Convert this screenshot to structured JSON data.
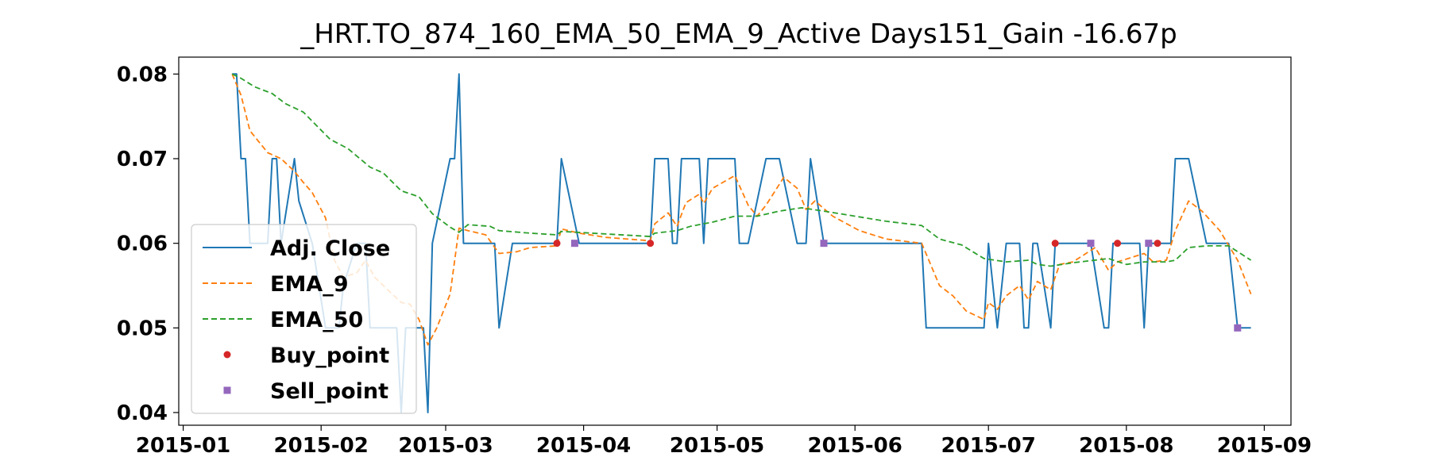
{
  "chart_data": {
    "type": "line",
    "title": "_HRT.TO_874_160_EMA_50_EMA_9_Active Days151_Gain -16.67p",
    "xlabel": "",
    "ylabel": "",
    "xlim": [
      "2014-12-31",
      "2015-09-07"
    ],
    "ylim": [
      0.0385,
      0.082
    ],
    "x_ticks": [
      "2015-01",
      "2015-02",
      "2015-03",
      "2015-04",
      "2015-05",
      "2015-06",
      "2015-07",
      "2015-08",
      "2015-09"
    ],
    "y_ticks": [
      "0.04",
      "0.05",
      "0.06",
      "0.07",
      "0.08"
    ],
    "grid": false,
    "legend_position": "center-left",
    "series": [
      {
        "name": "Adj. Close",
        "color": "#1f77b4",
        "style": "solid",
        "points": [
          [
            "2015-01-12",
            0.08
          ],
          [
            "2015-01-13",
            0.08
          ],
          [
            "2015-01-14",
            0.07
          ],
          [
            "2015-01-15",
            0.07
          ],
          [
            "2015-01-16",
            0.06
          ],
          [
            "2015-01-20",
            0.06
          ],
          [
            "2015-01-21",
            0.07
          ],
          [
            "2015-01-22",
            0.07
          ],
          [
            "2015-01-23",
            0.06
          ],
          [
            "2015-01-26",
            0.07
          ],
          [
            "2015-01-27",
            0.065
          ],
          [
            "2015-01-30",
            0.06
          ],
          [
            "2015-02-02",
            0.05
          ],
          [
            "2015-02-05",
            0.05
          ],
          [
            "2015-02-06",
            0.055
          ],
          [
            "2015-02-09",
            0.06
          ],
          [
            "2015-02-11",
            0.06
          ],
          [
            "2015-02-12",
            0.05
          ],
          [
            "2015-02-18",
            0.05
          ],
          [
            "2015-02-19",
            0.04
          ],
          [
            "2015-02-20",
            0.05
          ],
          [
            "2015-02-24",
            0.05
          ],
          [
            "2015-02-25",
            0.04
          ],
          [
            "2015-02-26",
            0.06
          ],
          [
            "2015-03-02",
            0.07
          ],
          [
            "2015-03-03",
            0.07
          ],
          [
            "2015-03-04",
            0.08
          ],
          [
            "2015-03-05",
            0.06
          ],
          [
            "2015-03-11",
            0.06
          ],
          [
            "2015-03-12",
            0.06
          ],
          [
            "2015-03-13",
            0.05
          ],
          [
            "2015-03-16",
            0.06
          ],
          [
            "2015-03-26",
            0.06
          ],
          [
            "2015-03-27",
            0.07
          ],
          [
            "2015-03-31",
            0.06
          ],
          [
            "2015-04-06",
            0.06
          ],
          [
            "2015-04-16",
            0.06
          ],
          [
            "2015-04-17",
            0.07
          ],
          [
            "2015-04-20",
            0.07
          ],
          [
            "2015-04-21",
            0.06
          ],
          [
            "2015-04-22",
            0.06
          ],
          [
            "2015-04-23",
            0.07
          ],
          [
            "2015-04-27",
            0.07
          ],
          [
            "2015-04-28",
            0.06
          ],
          [
            "2015-04-29",
            0.07
          ],
          [
            "2015-05-05",
            0.07
          ],
          [
            "2015-05-06",
            0.06
          ],
          [
            "2015-05-08",
            0.06
          ],
          [
            "2015-05-12",
            0.07
          ],
          [
            "2015-05-15",
            0.07
          ],
          [
            "2015-05-19",
            0.06
          ],
          [
            "2015-05-21",
            0.06
          ],
          [
            "2015-05-22",
            0.07
          ],
          [
            "2015-05-25",
            0.06
          ],
          [
            "2015-06-16",
            0.06
          ],
          [
            "2015-06-17",
            0.05
          ],
          [
            "2015-06-30",
            0.05
          ],
          [
            "2015-07-01",
            0.06
          ],
          [
            "2015-07-03",
            0.05
          ],
          [
            "2015-07-05",
            0.06
          ],
          [
            "2015-07-08",
            0.06
          ],
          [
            "2015-07-09",
            0.05
          ],
          [
            "2015-07-10",
            0.05
          ],
          [
            "2015-07-11",
            0.06
          ],
          [
            "2015-07-12",
            0.06
          ],
          [
            "2015-07-15",
            0.05
          ],
          [
            "2015-07-16",
            0.06
          ],
          [
            "2015-07-24",
            0.06
          ],
          [
            "2015-07-27",
            0.05
          ],
          [
            "2015-07-28",
            0.05
          ],
          [
            "2015-07-29",
            0.06
          ],
          [
            "2015-08-04",
            0.06
          ],
          [
            "2015-08-05",
            0.05
          ],
          [
            "2015-08-06",
            0.06
          ],
          [
            "2015-08-11",
            0.06
          ],
          [
            "2015-08-12",
            0.07
          ],
          [
            "2015-08-15",
            0.07
          ],
          [
            "2015-08-19",
            0.06
          ],
          [
            "2015-08-24",
            0.06
          ],
          [
            "2015-08-26",
            0.05
          ],
          [
            "2015-08-29",
            0.05
          ]
        ]
      },
      {
        "name": "EMA_9",
        "color": "#ff7f0e",
        "style": "dashed",
        "points": [
          [
            "2015-01-12",
            0.08
          ],
          [
            "2015-01-14",
            0.0775
          ],
          [
            "2015-01-16",
            0.0733
          ],
          [
            "2015-01-20",
            0.0707
          ],
          [
            "2015-01-23",
            0.07
          ],
          [
            "2015-01-26",
            0.0685
          ],
          [
            "2015-01-28",
            0.0672
          ],
          [
            "2015-01-30",
            0.066
          ],
          [
            "2015-02-02",
            0.063
          ],
          [
            "2015-02-04",
            0.058
          ],
          [
            "2015-02-06",
            0.056
          ],
          [
            "2015-02-09",
            0.0565
          ],
          [
            "2015-02-11",
            0.058
          ],
          [
            "2015-02-13",
            0.056
          ],
          [
            "2015-02-17",
            0.054
          ],
          [
            "2015-02-19",
            0.053
          ],
          [
            "2015-02-21",
            0.0528
          ],
          [
            "2015-02-23",
            0.051
          ],
          [
            "2015-02-25",
            0.048
          ],
          [
            "2015-02-27",
            0.05
          ],
          [
            "2015-03-02",
            0.054
          ],
          [
            "2015-03-04",
            0.0618
          ],
          [
            "2015-03-06",
            0.0615
          ],
          [
            "2015-03-10",
            0.061
          ],
          [
            "2015-03-13",
            0.0588
          ],
          [
            "2015-03-17",
            0.059
          ],
          [
            "2015-03-20",
            0.0595
          ],
          [
            "2015-03-26",
            0.0597
          ],
          [
            "2015-03-27",
            0.0617
          ],
          [
            "2015-03-31",
            0.0612
          ],
          [
            "2015-04-06",
            0.0607
          ],
          [
            "2015-04-16",
            0.0603
          ],
          [
            "2015-04-17",
            0.0623
          ],
          [
            "2015-04-20",
            0.0636
          ],
          [
            "2015-04-22",
            0.062
          ],
          [
            "2015-04-24",
            0.0648
          ],
          [
            "2015-04-27",
            0.0658
          ],
          [
            "2015-04-28",
            0.0647
          ],
          [
            "2015-04-30",
            0.0665
          ],
          [
            "2015-05-05",
            0.068
          ],
          [
            "2015-05-08",
            0.0645
          ],
          [
            "2015-05-10",
            0.0632
          ],
          [
            "2015-05-12",
            0.0645
          ],
          [
            "2015-05-16",
            0.0678
          ],
          [
            "2015-05-19",
            0.0665
          ],
          [
            "2015-05-21",
            0.064
          ],
          [
            "2015-05-23",
            0.065
          ],
          [
            "2015-05-27",
            0.0632
          ],
          [
            "2015-06-02",
            0.0615
          ],
          [
            "2015-06-08",
            0.0605
          ],
          [
            "2015-06-16",
            0.06
          ],
          [
            "2015-06-20",
            0.055
          ],
          [
            "2015-06-23",
            0.0538
          ],
          [
            "2015-06-26",
            0.052
          ],
          [
            "2015-06-30",
            0.051
          ],
          [
            "2015-07-01",
            0.053
          ],
          [
            "2015-07-03",
            0.0522
          ],
          [
            "2015-07-05",
            0.0538
          ],
          [
            "2015-07-08",
            0.055
          ],
          [
            "2015-07-10",
            0.0533
          ],
          [
            "2015-07-12",
            0.0555
          ],
          [
            "2015-07-15",
            0.0545
          ],
          [
            "2015-07-17",
            0.0575
          ],
          [
            "2015-07-20",
            0.0578
          ],
          [
            "2015-07-25",
            0.0595
          ],
          [
            "2015-07-28",
            0.0568
          ],
          [
            "2015-07-30",
            0.0578
          ],
          [
            "2015-08-05",
            0.0588
          ],
          [
            "2015-08-07",
            0.0578
          ],
          [
            "2015-08-10",
            0.058
          ],
          [
            "2015-08-12",
            0.0615
          ],
          [
            "2015-08-15",
            0.065
          ],
          [
            "2015-08-18",
            0.0638
          ],
          [
            "2015-08-22",
            0.0615
          ],
          [
            "2015-08-26",
            0.058
          ],
          [
            "2015-08-29",
            0.054
          ]
        ]
      },
      {
        "name": "EMA_50",
        "color": "#2ca02c",
        "style": "dashed",
        "points": [
          [
            "2015-01-12",
            0.08
          ],
          [
            "2015-01-14",
            0.0795
          ],
          [
            "2015-01-17",
            0.0785
          ],
          [
            "2015-01-21",
            0.0777
          ],
          [
            "2015-01-24",
            0.0765
          ],
          [
            "2015-01-28",
            0.0755
          ],
          [
            "2015-02-03",
            0.0723
          ],
          [
            "2015-02-07",
            0.0712
          ],
          [
            "2015-02-12",
            0.069
          ],
          [
            "2015-02-15",
            0.0683
          ],
          [
            "2015-02-19",
            0.0662
          ],
          [
            "2015-02-23",
            0.0655
          ],
          [
            "2015-02-26",
            0.0635
          ],
          [
            "2015-02-28",
            0.0627
          ],
          [
            "2015-03-02",
            0.0619
          ],
          [
            "2015-03-04",
            0.0613
          ],
          [
            "2015-03-06",
            0.0622
          ],
          [
            "2015-03-11",
            0.062
          ],
          [
            "2015-03-13",
            0.0615
          ],
          [
            "2015-03-20",
            0.0612
          ],
          [
            "2015-03-26",
            0.061
          ],
          [
            "2015-03-27",
            0.0614
          ],
          [
            "2015-04-06",
            0.0611
          ],
          [
            "2015-04-16",
            0.0608
          ],
          [
            "2015-04-17",
            0.0612
          ],
          [
            "2015-04-22",
            0.0615
          ],
          [
            "2015-04-25",
            0.062
          ],
          [
            "2015-04-30",
            0.0625
          ],
          [
            "2015-05-05",
            0.0632
          ],
          [
            "2015-05-10",
            0.0632
          ],
          [
            "2015-05-15",
            0.0638
          ],
          [
            "2015-05-20",
            0.0642
          ],
          [
            "2015-05-25",
            0.0638
          ],
          [
            "2015-06-01",
            0.0632
          ],
          [
            "2015-06-08",
            0.0626
          ],
          [
            "2015-06-16",
            0.0621
          ],
          [
            "2015-06-20",
            0.0605
          ],
          [
            "2015-06-25",
            0.0598
          ],
          [
            "2015-06-30",
            0.0582
          ],
          [
            "2015-07-05",
            0.0578
          ],
          [
            "2015-07-10",
            0.058
          ],
          [
            "2015-07-12",
            0.0575
          ],
          [
            "2015-07-15",
            0.0573
          ],
          [
            "2015-07-20",
            0.0577
          ],
          [
            "2015-07-28",
            0.0582
          ],
          [
            "2015-08-01",
            0.0575
          ],
          [
            "2015-08-05",
            0.0578
          ],
          [
            "2015-08-10",
            0.0578
          ],
          [
            "2015-08-12",
            0.058
          ],
          [
            "2015-08-15",
            0.0595
          ],
          [
            "2015-08-19",
            0.0597
          ],
          [
            "2015-08-24",
            0.0597
          ],
          [
            "2015-08-29",
            0.058
          ]
        ]
      }
    ],
    "markers": [
      {
        "name": "Buy_point",
        "color": "#d62728",
        "shape": "circle",
        "points": [
          [
            "2015-03-26",
            0.06
          ],
          [
            "2015-04-16",
            0.06
          ],
          [
            "2015-07-16",
            0.06
          ],
          [
            "2015-07-30",
            0.06
          ],
          [
            "2015-08-08",
            0.06
          ]
        ]
      },
      {
        "name": "Sell_point",
        "color": "#9467bd",
        "shape": "square",
        "points": [
          [
            "2015-03-30",
            0.06
          ],
          [
            "2015-05-25",
            0.06
          ],
          [
            "2015-07-24",
            0.06
          ],
          [
            "2015-08-06",
            0.06
          ],
          [
            "2015-08-26",
            0.05
          ]
        ]
      }
    ]
  }
}
